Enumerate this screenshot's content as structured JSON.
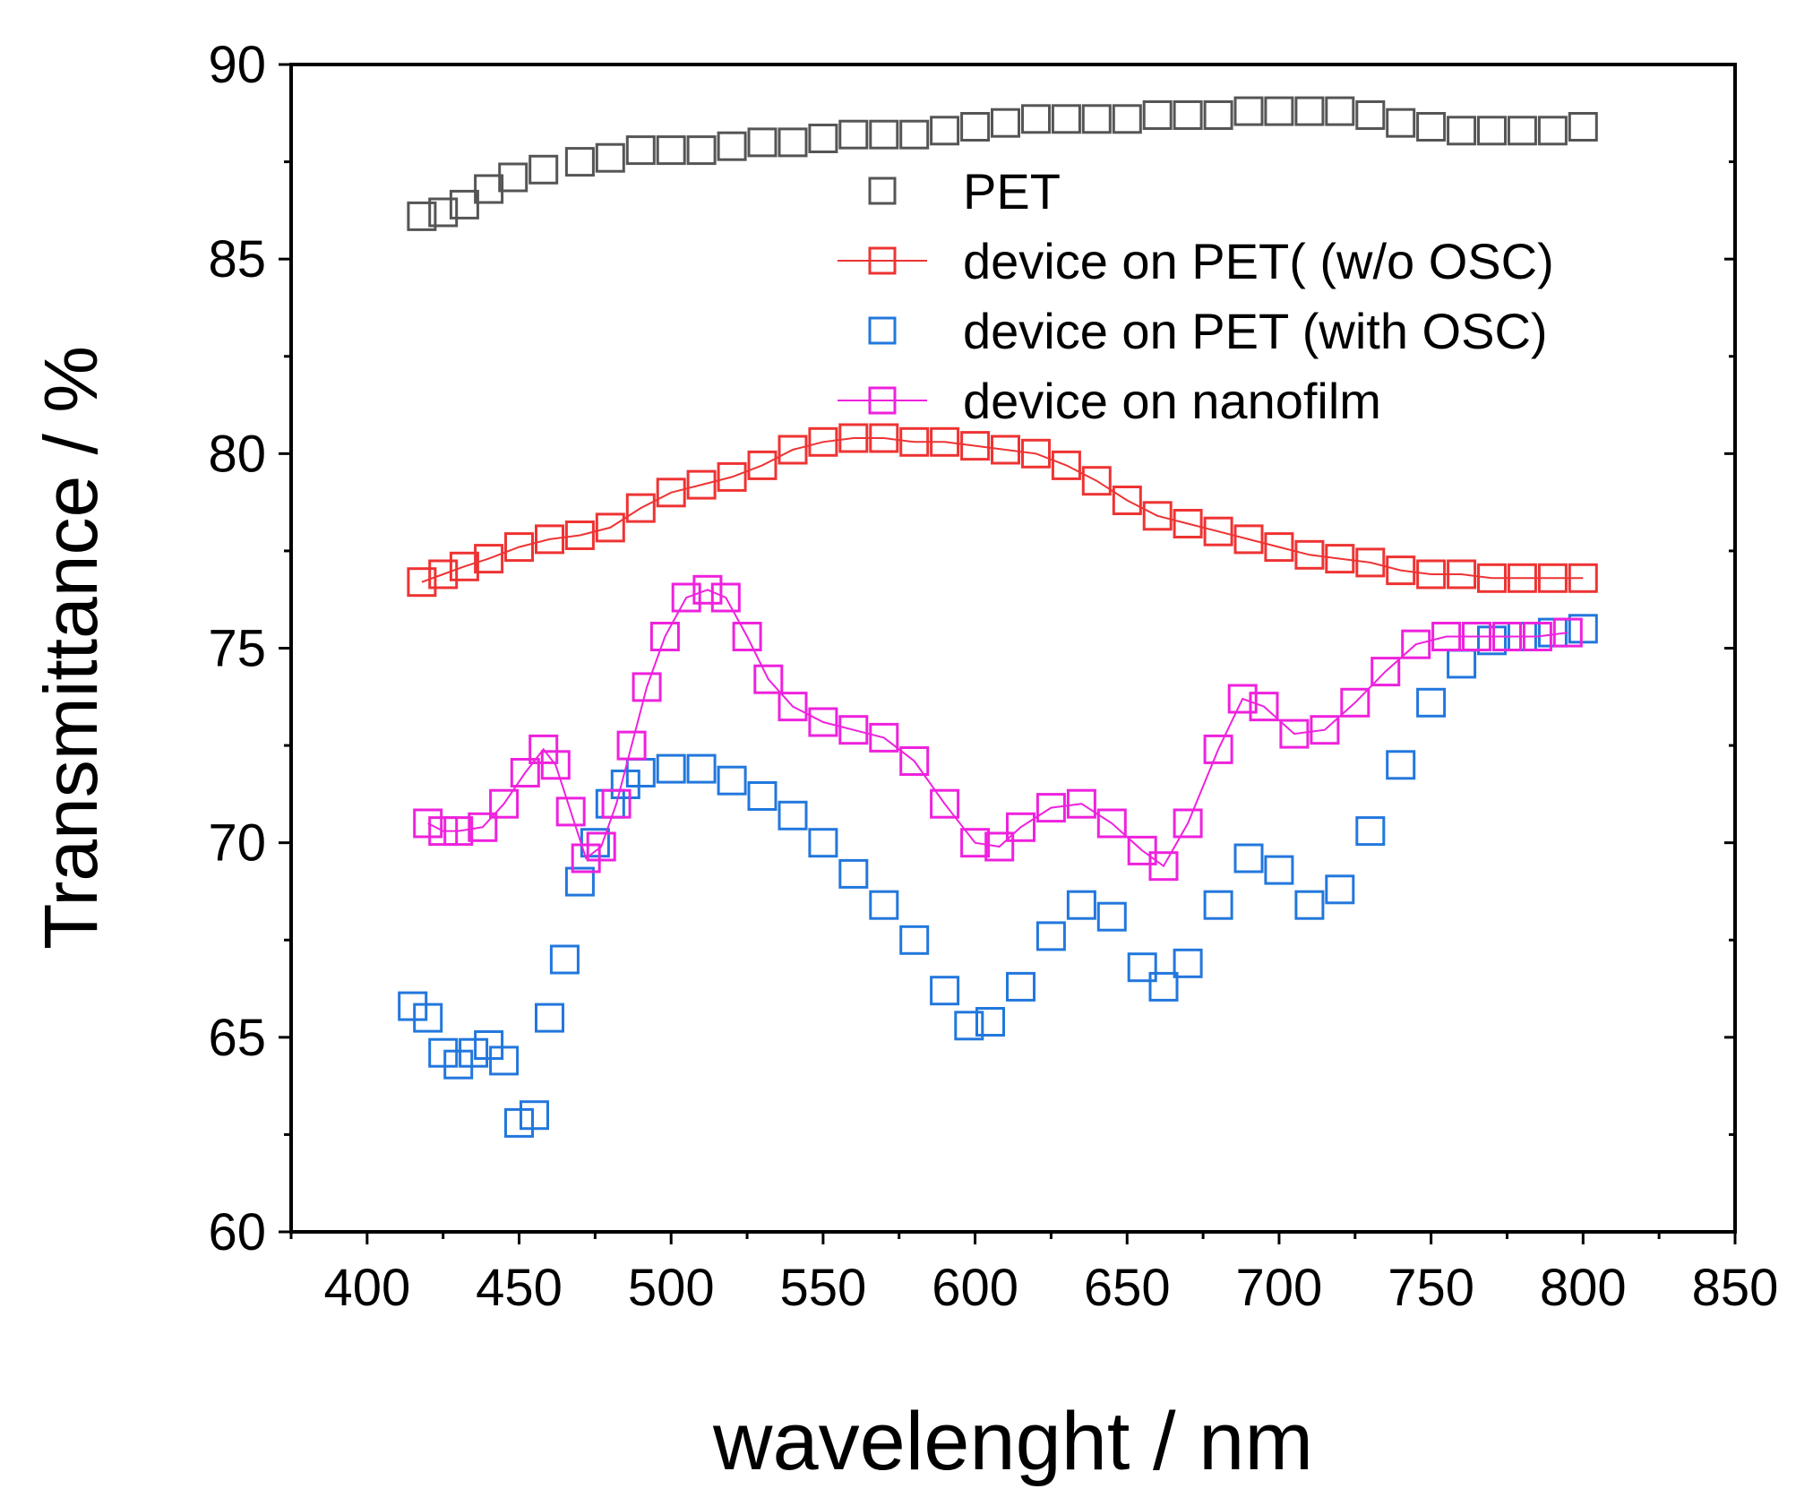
{
  "chart_data": {
    "type": "scatter",
    "xlabel": "wavelenght / nm",
    "ylabel": "Transmittance / %",
    "xlim": [
      375,
      850
    ],
    "ylim": [
      60,
      90
    ],
    "xticks": [
      400,
      450,
      500,
      550,
      600,
      650,
      700,
      750,
      800,
      850
    ],
    "yticks": [
      60,
      65,
      70,
      75,
      80,
      85,
      90
    ],
    "grid": false,
    "legend_position": "top-right",
    "series": [
      {
        "name": "PET",
        "color": "#555555",
        "marker": "open-square",
        "line": false,
        "points": [
          [
            418,
            86.1
          ],
          [
            425,
            86.2
          ],
          [
            432,
            86.4
          ],
          [
            440,
            86.8
          ],
          [
            448,
            87.1
          ],
          [
            458,
            87.3
          ],
          [
            470,
            87.5
          ],
          [
            480,
            87.6
          ],
          [
            490,
            87.8
          ],
          [
            500,
            87.8
          ],
          [
            510,
            87.8
          ],
          [
            520,
            87.9
          ],
          [
            530,
            88.0
          ],
          [
            540,
            88.0
          ],
          [
            550,
            88.1
          ],
          [
            560,
            88.2
          ],
          [
            570,
            88.2
          ],
          [
            580,
            88.2
          ],
          [
            590,
            88.3
          ],
          [
            600,
            88.4
          ],
          [
            610,
            88.5
          ],
          [
            620,
            88.6
          ],
          [
            630,
            88.6
          ],
          [
            640,
            88.6
          ],
          [
            650,
            88.6
          ],
          [
            660,
            88.7
          ],
          [
            670,
            88.7
          ],
          [
            680,
            88.7
          ],
          [
            690,
            88.8
          ],
          [
            700,
            88.8
          ],
          [
            710,
            88.8
          ],
          [
            720,
            88.8
          ],
          [
            730,
            88.7
          ],
          [
            740,
            88.5
          ],
          [
            750,
            88.4
          ],
          [
            760,
            88.3
          ],
          [
            770,
            88.3
          ],
          [
            780,
            88.3
          ],
          [
            790,
            88.3
          ],
          [
            800,
            88.4
          ]
        ]
      },
      {
        "name": "device on PET( (w/o  OSC)",
        "color": "#ee3333",
        "marker": "open-square",
        "line": true,
        "points": [
          [
            418,
            76.7
          ],
          [
            425,
            76.9
          ],
          [
            432,
            77.1
          ],
          [
            440,
            77.3
          ],
          [
            450,
            77.6
          ],
          [
            460,
            77.8
          ],
          [
            470,
            77.9
          ],
          [
            480,
            78.1
          ],
          [
            490,
            78.6
          ],
          [
            500,
            79.0
          ],
          [
            510,
            79.2
          ],
          [
            520,
            79.4
          ],
          [
            530,
            79.7
          ],
          [
            540,
            80.1
          ],
          [
            550,
            80.3
          ],
          [
            560,
            80.4
          ],
          [
            570,
            80.4
          ],
          [
            580,
            80.3
          ],
          [
            590,
            80.3
          ],
          [
            600,
            80.2
          ],
          [
            610,
            80.1
          ],
          [
            620,
            80.0
          ],
          [
            630,
            79.7
          ],
          [
            640,
            79.3
          ],
          [
            650,
            78.8
          ],
          [
            660,
            78.4
          ],
          [
            670,
            78.2
          ],
          [
            680,
            78.0
          ],
          [
            690,
            77.8
          ],
          [
            700,
            77.6
          ],
          [
            710,
            77.4
          ],
          [
            720,
            77.3
          ],
          [
            730,
            77.2
          ],
          [
            740,
            77.0
          ],
          [
            750,
            76.9
          ],
          [
            760,
            76.9
          ],
          [
            770,
            76.8
          ],
          [
            780,
            76.8
          ],
          [
            790,
            76.8
          ],
          [
            800,
            76.8
          ]
        ]
      },
      {
        "name": "device on PET (with OSC)",
        "color": "#2277dd",
        "marker": "open-square",
        "line": false,
        "points": [
          [
            415,
            65.8
          ],
          [
            420,
            65.5
          ],
          [
            425,
            64.6
          ],
          [
            430,
            64.3
          ],
          [
            435,
            64.6
          ],
          [
            440,
            64.8
          ],
          [
            445,
            64.4
          ],
          [
            450,
            62.8
          ],
          [
            455,
            63.0
          ],
          [
            460,
            65.5
          ],
          [
            465,
            67.0
          ],
          [
            470,
            69.0
          ],
          [
            475,
            70.0
          ],
          [
            480,
            71.0
          ],
          [
            485,
            71.5
          ],
          [
            490,
            71.8
          ],
          [
            500,
            71.9
          ],
          [
            510,
            71.9
          ],
          [
            520,
            71.6
          ],
          [
            530,
            71.2
          ],
          [
            540,
            70.7
          ],
          [
            550,
            70.0
          ],
          [
            560,
            69.2
          ],
          [
            570,
            68.4
          ],
          [
            580,
            67.5
          ],
          [
            590,
            66.2
          ],
          [
            598,
            65.3
          ],
          [
            605,
            65.4
          ],
          [
            615,
            66.3
          ],
          [
            625,
            67.6
          ],
          [
            635,
            68.4
          ],
          [
            645,
            68.1
          ],
          [
            655,
            66.8
          ],
          [
            662,
            66.3
          ],
          [
            670,
            66.9
          ],
          [
            680,
            68.4
          ],
          [
            690,
            69.6
          ],
          [
            700,
            69.3
          ],
          [
            710,
            68.4
          ],
          [
            720,
            68.8
          ],
          [
            730,
            70.3
          ],
          [
            740,
            72.0
          ],
          [
            750,
            73.6
          ],
          [
            760,
            74.6
          ],
          [
            770,
            75.2
          ],
          [
            780,
            75.3
          ],
          [
            790,
            75.4
          ],
          [
            800,
            75.5
          ]
        ]
      },
      {
        "name": "device on nanofilm",
        "color": "#ee22dd",
        "marker": "open-square",
        "line": true,
        "points": [
          [
            420,
            70.5
          ],
          [
            425,
            70.3
          ],
          [
            430,
            70.3
          ],
          [
            438,
            70.4
          ],
          [
            445,
            71.0
          ],
          [
            452,
            71.8
          ],
          [
            458,
            72.4
          ],
          [
            462,
            72.0
          ],
          [
            467,
            70.8
          ],
          [
            472,
            69.6
          ],
          [
            477,
            69.9
          ],
          [
            482,
            71.0
          ],
          [
            487,
            72.5
          ],
          [
            492,
            74.0
          ],
          [
            498,
            75.3
          ],
          [
            505,
            76.3
          ],
          [
            512,
            76.5
          ],
          [
            518,
            76.3
          ],
          [
            525,
            75.3
          ],
          [
            532,
            74.2
          ],
          [
            540,
            73.5
          ],
          [
            550,
            73.1
          ],
          [
            560,
            72.9
          ],
          [
            570,
            72.7
          ],
          [
            580,
            72.1
          ],
          [
            590,
            71.0
          ],
          [
            600,
            70.0
          ],
          [
            608,
            69.9
          ],
          [
            615,
            70.4
          ],
          [
            625,
            70.9
          ],
          [
            635,
            71.0
          ],
          [
            645,
            70.5
          ],
          [
            655,
            69.8
          ],
          [
            662,
            69.4
          ],
          [
            670,
            70.5
          ],
          [
            680,
            72.4
          ],
          [
            688,
            73.7
          ],
          [
            695,
            73.5
          ],
          [
            705,
            72.8
          ],
          [
            715,
            72.9
          ],
          [
            725,
            73.6
          ],
          [
            735,
            74.4
          ],
          [
            745,
            75.1
          ],
          [
            755,
            75.3
          ],
          [
            765,
            75.3
          ],
          [
            775,
            75.3
          ],
          [
            785,
            75.3
          ],
          [
            795,
            75.4
          ]
        ]
      }
    ]
  }
}
